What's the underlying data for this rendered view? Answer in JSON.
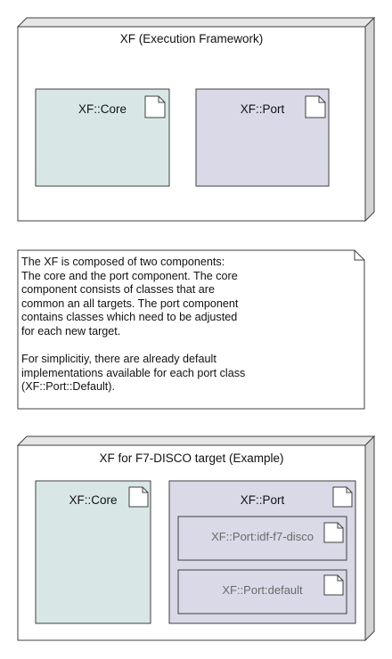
{
  "diagram1": {
    "node_title": "XF (Execution Framework)",
    "components": [
      {
        "label": "XF::Core",
        "fill": "#d8e7e5"
      },
      {
        "label": "XF::Port",
        "fill": "#d9d9e7"
      }
    ]
  },
  "note": {
    "paragraph1": [
      "The XF is composed of two components:",
      "The core and the port component. The core",
      "component consists of classes that are",
      "common an all targets. The port component",
      "contains classes which need to be adjusted",
      "for each new target."
    ],
    "paragraph2": [
      "For simplicitiy, there are already default",
      "implementations available for each port class",
      "(XF::Port::Default)."
    ]
  },
  "diagram2": {
    "node_title": "XF for F7-DISCO target (Example)",
    "core_label": "XF::Core",
    "port_label": "XF::Port",
    "port_children": [
      "XF::Port:idf-f7-disco",
      "XF::Port:default"
    ]
  },
  "colors": {
    "core_fill": "#d8e7e5",
    "port_fill": "#d9d9e7",
    "node_side": "#d4d4d4",
    "stroke": "#404040"
  }
}
